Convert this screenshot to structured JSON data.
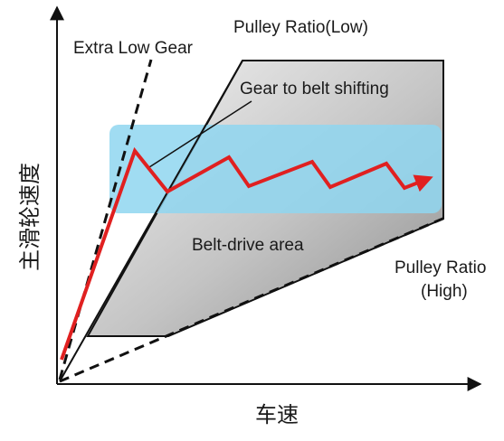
{
  "labels": {
    "extra_low_gear": "Extra Low Gear",
    "pulley_ratio_low": "Pulley Ratio(Low)",
    "gear_to_belt_shifting": "Gear to belt shifting",
    "belt_drive_area": "Belt-drive area",
    "pulley_ratio_high_line1": "Pulley Ratio",
    "pulley_ratio_high_line2": "(High)",
    "y_axis": "主滑轮速度",
    "x_axis": "车速"
  },
  "colors": {
    "belt_region_fill": "#b5b5b5",
    "operating_band_fill": "#8fd6f0",
    "speed_trace": "#e02020",
    "lines": "#111111"
  }
}
